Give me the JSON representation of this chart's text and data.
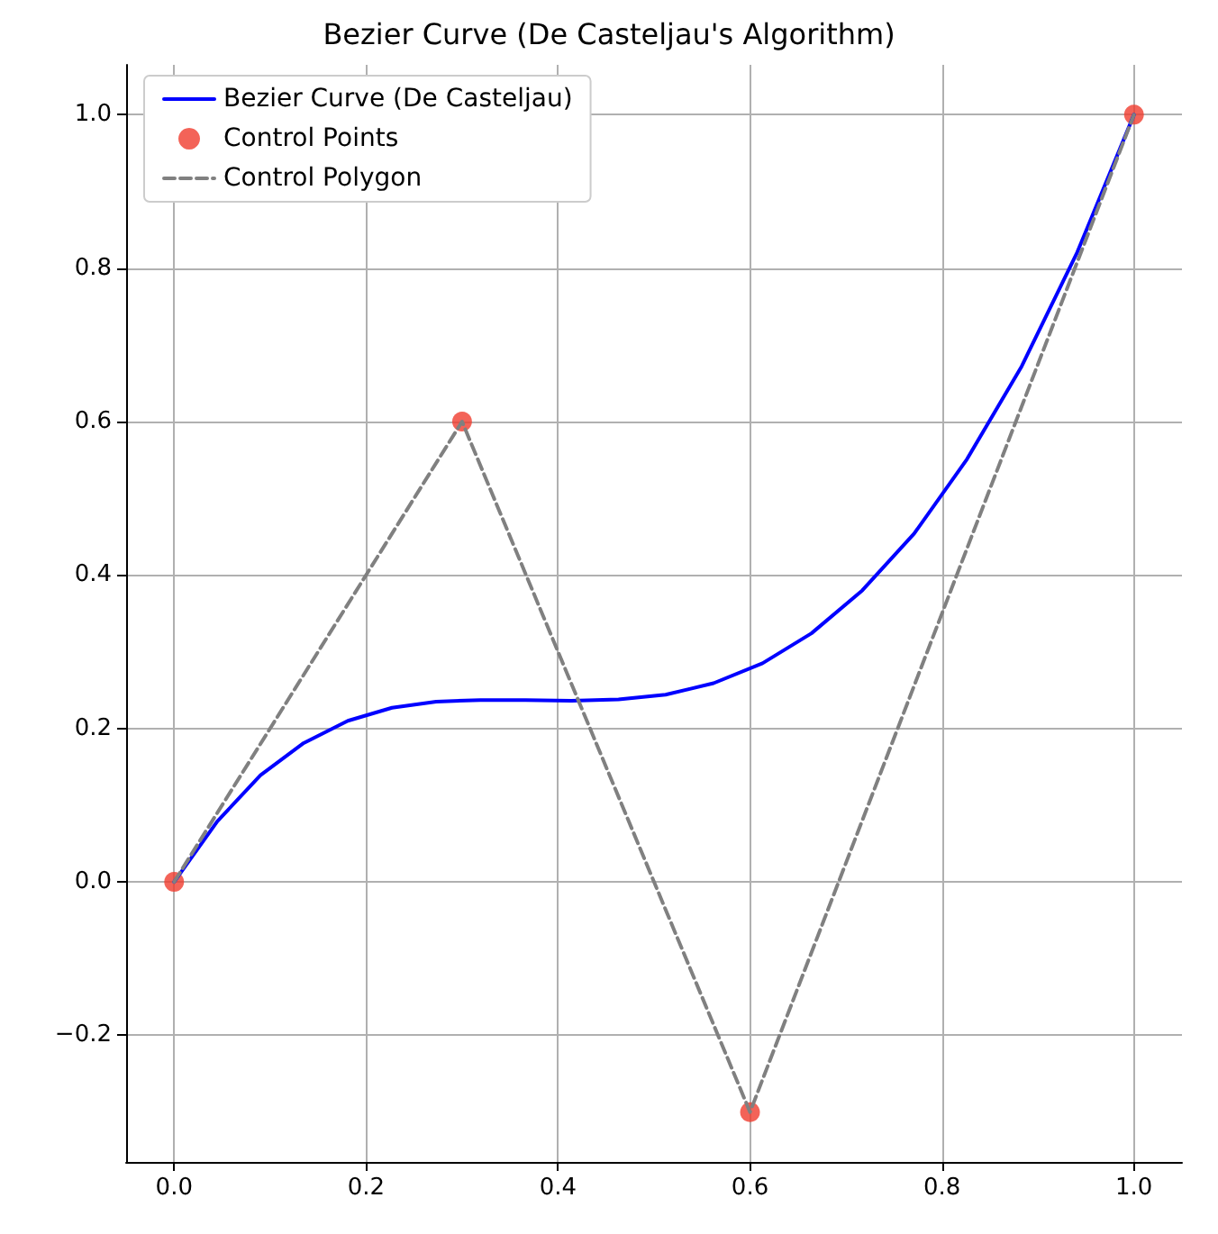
{
  "chart_data": {
    "type": "line",
    "title": "Bezier Curve (De Casteljau's Algorithm)",
    "series": [
      {
        "name": "Bezier Curve (De Casteljau)",
        "color": "#0000ff",
        "line_style": "solid",
        "marker": "none",
        "x": [
          0,
          0.045,
          0.09,
          0.135,
          0.181,
          0.227,
          0.273,
          0.319,
          0.366,
          0.414,
          0.463,
          0.512,
          0.562,
          0.613,
          0.664,
          0.717,
          0.771,
          0.826,
          0.883,
          0.941,
          1
        ],
        "values": [
          0,
          0.079,
          0.139,
          0.181,
          0.21,
          0.227,
          0.235,
          0.237,
          0.237,
          0.236,
          0.238,
          0.244,
          0.259,
          0.285,
          0.324,
          0.38,
          0.454,
          0.551,
          0.672,
          0.821,
          1
        ]
      },
      {
        "name": "Control Points",
        "type": "scatter",
        "color": "#f03c2e",
        "marker": "circle",
        "x": [
          0,
          0.3,
          0.6,
          1
        ],
        "values": [
          0,
          0.6,
          -0.3,
          1
        ]
      },
      {
        "name": "Control Polygon",
        "color": "#808080",
        "line_style": "dashed",
        "marker": "none",
        "x": [
          0,
          0.3,
          0.6,
          1
        ],
        "values": [
          0,
          0.6,
          -0.3,
          1
        ]
      }
    ],
    "xlim": [
      -0.05,
      1.05
    ],
    "ylim": [
      -0.365,
      1.065
    ],
    "xticks": [
      {
        "value": 0,
        "label": "0.0"
      },
      {
        "value": 0.2,
        "label": "0.2"
      },
      {
        "value": 0.4,
        "label": "0.4"
      },
      {
        "value": 0.6,
        "label": "0.6"
      },
      {
        "value": 0.8,
        "label": "0.8"
      },
      {
        "value": 1,
        "label": "1.0"
      }
    ],
    "yticks": [
      {
        "value": -0.2,
        "label": "−0.2"
      },
      {
        "value": 0,
        "label": "0.0"
      },
      {
        "value": 0.2,
        "label": "0.2"
      },
      {
        "value": 0.4,
        "label": "0.4"
      },
      {
        "value": 0.6,
        "label": "0.6"
      },
      {
        "value": 0.8,
        "label": "0.8"
      },
      {
        "value": 1,
        "label": "1.0"
      }
    ],
    "grid": true,
    "legend": "top left"
  }
}
